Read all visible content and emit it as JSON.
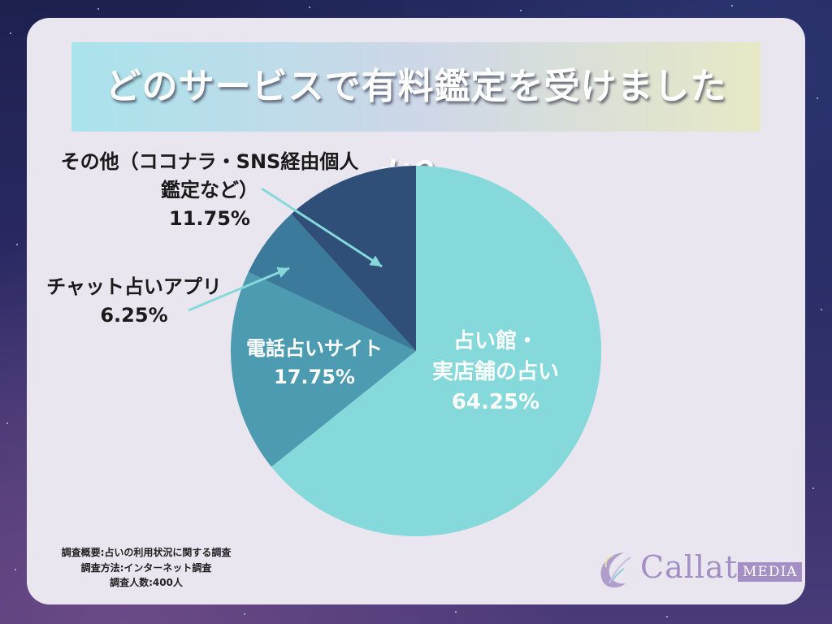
{
  "title": "どのサービスで有料鑑定を受けましたか？",
  "chart_data": {
    "type": "pie",
    "categories": [
      "占い館・実店舗の占い",
      "電話占いサイト",
      "チャット占いアプリ",
      "その他（ココナラ・SNS経由個人鑑定など）"
    ],
    "values": [
      64.25,
      17.75,
      6.25,
      11.75
    ],
    "unit": "%",
    "colors": [
      "#86d9da",
      "#4d9bb0",
      "#3b7a9a",
      "#2f4f78"
    ],
    "start": "12 o'clock, clockwise",
    "labels": {
      "main": {
        "line1": "占い館・",
        "line2": "実店舗の占い",
        "value": "64.25%"
      },
      "phone": {
        "line1": "電話占いサイト",
        "value": "17.75%"
      },
      "chat": {
        "line1": "チャット占いアプリ",
        "value": "6.25%"
      },
      "other": {
        "line1": "その他（ココナラ・SNS経由個人",
        "line2": "鑑定など）",
        "value": "11.75%"
      }
    },
    "callout_color": "#86d9da"
  },
  "footnote": {
    "line1": "調査概要:占いの利用状況に関する調査",
    "line2": "調査方法:インターネット調査",
    "line3": "調査人数:400人"
  },
  "logo": {
    "name": "Callat",
    "badge": "MEDIA",
    "color": "#a48fc4"
  }
}
